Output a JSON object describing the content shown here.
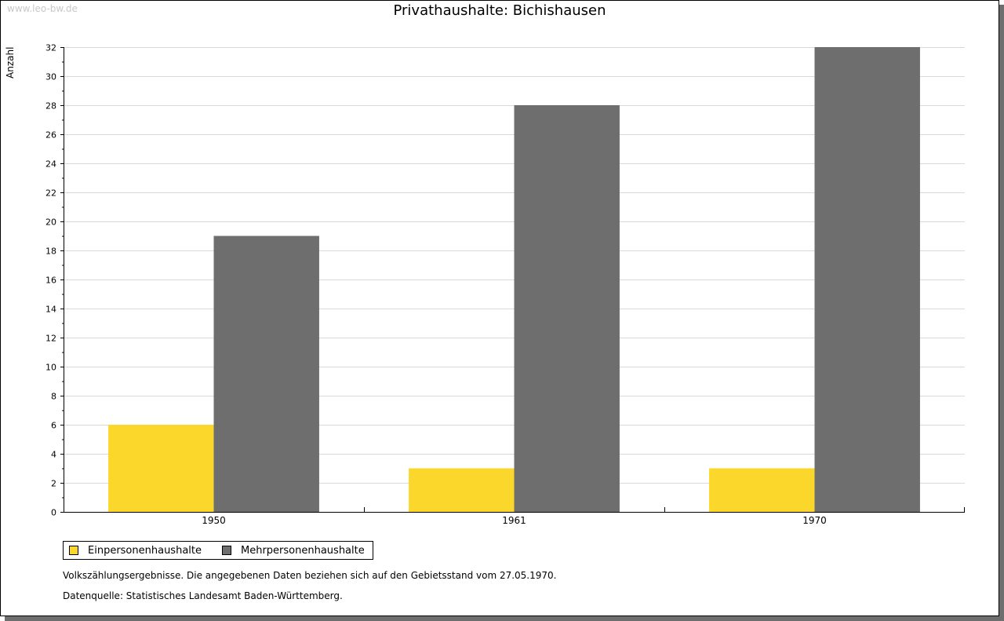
{
  "watermark": "www.leo-bw.de",
  "chart_data": {
    "type": "bar",
    "title": "Privathaushalte: Bichishausen",
    "xlabel": "",
    "ylabel": "Anzahl",
    "categories": [
      "1950",
      "1961",
      "1970"
    ],
    "series": [
      {
        "name": "Einpersonenhaushalte",
        "color": "#fcd72b",
        "values": [
          6,
          3,
          3
        ]
      },
      {
        "name": "Mehrpersonenhaushalte",
        "color": "#6e6e6e",
        "values": [
          19,
          28,
          32
        ]
      }
    ],
    "ylim": [
      0,
      32
    ],
    "yticks": [
      0,
      2,
      4,
      6,
      8,
      10,
      12,
      14,
      16,
      18,
      20,
      22,
      24,
      26,
      28,
      30,
      32
    ],
    "grid": true,
    "legend_position": "bottom-left"
  },
  "notes": [
    "Volkszählungsergebnisse. Die angegebenen Daten beziehen sich auf den Gebietsstand vom 27.05.1970.",
    "Datenquelle: Statistisches Landesamt Baden-Württemberg."
  ]
}
